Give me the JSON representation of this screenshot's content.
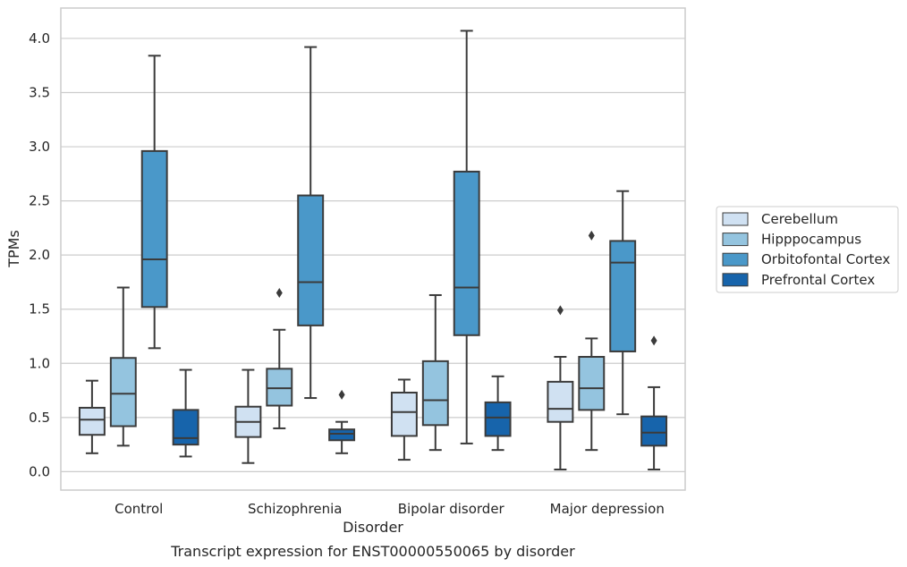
{
  "chart_data": {
    "type": "box",
    "title": "",
    "caption": "Transcript expression for ENST00000550065 by disorder",
    "xlabel": "Disorder",
    "ylabel": "TPMs",
    "ylim": [
      -0.17,
      4.28
    ],
    "yticks": [
      "0.0",
      "0.5",
      "1.0",
      "1.5",
      "2.0",
      "2.5",
      "3.0",
      "3.5",
      "4.0"
    ],
    "grid": "horizontal",
    "legend_position": "right",
    "categories": [
      "Control",
      "Schizophrenia",
      "Bipolar disorder",
      "Major depression"
    ],
    "series": [
      {
        "name": "Cerebellum",
        "color": "#d0e1f2",
        "boxes": [
          {
            "whisker_low": 0.17,
            "q1": 0.34,
            "median": 0.48,
            "q3": 0.59,
            "whisker_high": 0.84,
            "outliers": []
          },
          {
            "whisker_low": 0.08,
            "q1": 0.32,
            "median": 0.46,
            "q3": 0.6,
            "whisker_high": 0.94,
            "outliers": []
          },
          {
            "whisker_low": 0.11,
            "q1": 0.33,
            "median": 0.55,
            "q3": 0.73,
            "whisker_high": 0.85,
            "outliers": []
          },
          {
            "whisker_low": 0.02,
            "q1": 0.46,
            "median": 0.58,
            "q3": 0.83,
            "whisker_high": 1.06,
            "outliers": [
              1.49
            ]
          }
        ]
      },
      {
        "name": "Hipppocampus",
        "color": "#94c4df",
        "boxes": [
          {
            "whisker_low": 0.24,
            "q1": 0.42,
            "median": 0.72,
            "q3": 1.05,
            "whisker_high": 1.7,
            "outliers": []
          },
          {
            "whisker_low": 0.4,
            "q1": 0.61,
            "median": 0.77,
            "q3": 0.95,
            "whisker_high": 1.31,
            "outliers": [
              1.65
            ]
          },
          {
            "whisker_low": 0.2,
            "q1": 0.43,
            "median": 0.66,
            "q3": 1.02,
            "whisker_high": 1.63,
            "outliers": []
          },
          {
            "whisker_low": 0.2,
            "q1": 0.57,
            "median": 0.77,
            "q3": 1.06,
            "whisker_high": 1.23,
            "outliers": [
              2.18
            ]
          }
        ]
      },
      {
        "name": "Orbitofontal Cortex",
        "color": "#4a98c9",
        "boxes": [
          {
            "whisker_low": 1.14,
            "q1": 1.52,
            "median": 1.96,
            "q3": 2.96,
            "whisker_high": 3.84,
            "outliers": []
          },
          {
            "whisker_low": 0.68,
            "q1": 1.35,
            "median": 1.75,
            "q3": 2.55,
            "whisker_high": 3.92,
            "outliers": []
          },
          {
            "whisker_low": 0.26,
            "q1": 1.26,
            "median": 1.7,
            "q3": 2.77,
            "whisker_high": 4.07,
            "outliers": []
          },
          {
            "whisker_low": 0.53,
            "q1": 1.11,
            "median": 1.93,
            "q3": 2.13,
            "whisker_high": 2.59,
            "outliers": []
          }
        ]
      },
      {
        "name": "Prefrontal Cortex",
        "color": "#1764ab",
        "boxes": [
          {
            "whisker_low": 0.14,
            "q1": 0.25,
            "median": 0.31,
            "q3": 0.57,
            "whisker_high": 0.94,
            "outliers": []
          },
          {
            "whisker_low": 0.17,
            "q1": 0.29,
            "median": 0.35,
            "q3": 0.39,
            "whisker_high": 0.46,
            "outliers": [
              0.71
            ]
          },
          {
            "whisker_low": 0.2,
            "q1": 0.33,
            "median": 0.5,
            "q3": 0.64,
            "whisker_high": 0.88,
            "outliers": []
          },
          {
            "whisker_low": 0.02,
            "q1": 0.24,
            "median": 0.36,
            "q3": 0.51,
            "whisker_high": 0.78,
            "outliers": [
              1.21
            ]
          }
        ]
      }
    ]
  }
}
